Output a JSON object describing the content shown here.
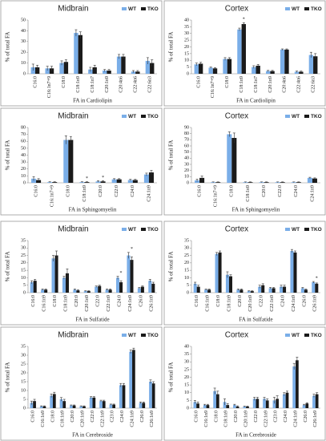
{
  "chart_data": [
    {
      "type": "bar",
      "title": "Midbrain",
      "xlabel": "FA in Cardiolipin",
      "ylabel": "% of total FA",
      "categories": [
        "C16:0",
        "C16:1n7+9",
        "C18:0",
        "C18:1n9",
        "C18:1n7",
        "C20:1n9",
        "C20:4n6",
        "C22:4n6",
        "C22:6n3"
      ],
      "series": [
        {
          "name": "WT",
          "color": "#7aaee8",
          "values": [
            6,
            5,
            10,
            38,
            4,
            3,
            16,
            2,
            12
          ],
          "errors": [
            3,
            2,
            2,
            3,
            2,
            1,
            2,
            1,
            3
          ]
        },
        {
          "name": "TKO",
          "color": "#1a1a1a",
          "values": [
            6,
            5,
            11,
            36,
            6,
            3,
            16,
            2,
            10
          ],
          "errors": [
            2,
            2,
            2,
            3,
            2,
            1,
            2,
            1,
            3
          ]
        }
      ],
      "ylim": [
        0,
        50
      ],
      "yticks": [
        0,
        10,
        20,
        30,
        40,
        50
      ],
      "annotations": []
    },
    {
      "type": "bar",
      "title": "Cortex",
      "xlabel": "FA in Cardiolipin",
      "ylabel": "% of total FA",
      "categories": [
        "C16:0",
        "C16:1n7+9",
        "C18:0",
        "C18:1n9",
        "C18:1n7",
        "C20:1n9",
        "C20:4n6",
        "C22:4n6",
        "C22:6n3"
      ],
      "series": [
        {
          "name": "WT",
          "color": "#7aaee8",
          "values": [
            7,
            4.5,
            11,
            33,
            5,
            2,
            18,
            1.5,
            14
          ],
          "errors": [
            1,
            0.5,
            1,
            1,
            1,
            0.5,
            0.5,
            0.5,
            2
          ]
        },
        {
          "name": "TKO",
          "color": "#1a1a1a",
          "values": [
            7.5,
            4,
            11,
            37,
            6,
            2,
            18,
            1.5,
            13
          ],
          "errors": [
            1,
            0.5,
            1,
            1,
            1,
            0.5,
            0.5,
            0.5,
            2
          ]
        }
      ],
      "ylim": [
        0,
        40
      ],
      "yticks": [
        0,
        5,
        10,
        15,
        20,
        25,
        30,
        35,
        40
      ],
      "annotations": [
        {
          "text": "*",
          "category": "C18:1n9"
        }
      ]
    },
    {
      "type": "bar",
      "title": "Midbrain",
      "xlabel": "FA in Sphingomyelin",
      "ylabel": "% of total FA",
      "categories": [
        "C16:0",
        "C16:1n7+9",
        "C18:0",
        "C18:1n9",
        "C20:0",
        "C22:0",
        "C24:0",
        "C24:1n9"
      ],
      "series": [
        {
          "name": "WT",
          "color": "#7aaee8",
          "values": [
            6,
            1,
            62,
            1,
            2,
            5,
            4,
            12
          ],
          "errors": [
            3,
            0.5,
            6,
            0.5,
            1,
            1,
            1,
            2
          ]
        },
        {
          "name": "TKO",
          "color": "#1a1a1a",
          "values": [
            4,
            1,
            62,
            1,
            2,
            5,
            4,
            15
          ],
          "errors": [
            2,
            0.5,
            5,
            0.5,
            1,
            1,
            1,
            3
          ]
        }
      ],
      "ylim": [
        0,
        80
      ],
      "yticks": [
        0,
        10,
        20,
        30,
        40,
        50,
        60,
        70,
        80
      ],
      "annotations": [
        {
          "text": "*",
          "category": "C18:1n9"
        },
        {
          "text": "*",
          "category": "C20:0"
        }
      ]
    },
    {
      "type": "bar",
      "title": "Cortex",
      "xlabel": "FA in Sphingomyelin",
      "ylabel": "% of total FA",
      "categories": [
        "C16:0",
        "C16:1n7+9",
        "C18:0",
        "C18:1n9",
        "C20:0",
        "C22:0",
        "C24:0",
        "C24:1n9"
      ],
      "series": [
        {
          "name": "WT",
          "color": "#7aaee8",
          "values": [
            4,
            1,
            79,
            1,
            1,
            1,
            1,
            8
          ],
          "errors": [
            2,
            0.5,
            4,
            0.5,
            0.5,
            0.5,
            0.5,
            1
          ]
        },
        {
          "name": "TKO",
          "color": "#1a1a1a",
          "values": [
            8,
            1,
            73,
            1,
            1,
            1,
            1,
            7
          ],
          "errors": [
            3,
            0.5,
            8,
            0.5,
            0.5,
            0.5,
            0.5,
            1
          ]
        }
      ],
      "ylim": [
        0,
        90
      ],
      "yticks": [
        0,
        10,
        20,
        30,
        40,
        50,
        60,
        70,
        80,
        90
      ],
      "annotations": []
    },
    {
      "type": "bar",
      "title": "Midbrain",
      "xlabel": "FA in Sulfatide",
      "ylabel": "% of total FA",
      "categories": [
        "C16:0",
        "C16:1n9",
        "C18:0",
        "C18:1n9",
        "C20:0",
        "C20:1n9",
        "C22:0",
        "C22:1n9",
        "C24:0",
        "C24:1n9",
        "C26:0",
        "C26:1n9"
      ],
      "series": [
        {
          "name": "WT",
          "color": "#7aaee8",
          "values": [
            7,
            2,
            23,
            10,
            2,
            1,
            4,
            2,
            10,
            25,
            3,
            8
          ],
          "errors": [
            1,
            0.5,
            2,
            1,
            0.5,
            0.3,
            0.5,
            0.5,
            1,
            2,
            0.5,
            1
          ]
        },
        {
          "name": "TKO",
          "color": "#1a1a1a",
          "values": [
            8,
            2,
            25,
            13,
            1.5,
            1,
            4.5,
            2,
            7,
            22,
            4,
            6
          ],
          "errors": [
            1,
            0.5,
            3,
            3,
            0.5,
            0.3,
            0.5,
            0.5,
            1,
            2,
            0.5,
            1
          ]
        }
      ],
      "ylim": [
        0,
        35
      ],
      "yticks": [
        0,
        5,
        10,
        15,
        20,
        25,
        30,
        35
      ],
      "annotations": [
        {
          "text": "*",
          "category": "C24:0"
        },
        {
          "text": "*",
          "category": "C24:1n9"
        }
      ]
    },
    {
      "type": "bar",
      "title": "Cortex",
      "xlabel": "FA in Sulfatide",
      "ylabel": "% of total FA",
      "categories": [
        "C16:0",
        "C16:1n9",
        "C18:0",
        "C18:1n9",
        "C20:0",
        "C20:1n9",
        "C22:0",
        "C22:1n9",
        "C24:0",
        "C24:1n9",
        "C26:0",
        "C26:1n9"
      ],
      "series": [
        {
          "name": "WT",
          "color": "#7aaee8",
          "values": [
            6,
            2,
            26,
            12,
            2,
            1,
            4,
            3,
            4,
            28,
            3,
            7
          ],
          "errors": [
            1,
            0.5,
            1,
            2,
            0.5,
            0.3,
            1,
            0.5,
            1,
            1,
            0.5,
            0.5
          ]
        },
        {
          "name": "TKO",
          "color": "#1a1a1a",
          "values": [
            4,
            2,
            27,
            11,
            2,
            1,
            5,
            3,
            4,
            27,
            2,
            6
          ],
          "errors": [
            1,
            0.5,
            1,
            1,
            0.5,
            0.3,
            1,
            0.5,
            1,
            1,
            0.5,
            0.5
          ]
        }
      ],
      "ylim": [
        0,
        35
      ],
      "yticks": [
        0,
        5,
        10,
        15,
        20,
        25,
        30,
        35
      ],
      "annotations": [
        {
          "text": "*",
          "category": "C26:1n9"
        }
      ]
    },
    {
      "type": "bar",
      "title": "Midbrain",
      "xlabel": "FA in Cerebroside",
      "ylabel": "% of total FA",
      "categories": [
        "C16:0",
        "C16:1n9",
        "C18:0",
        "C18:1n9",
        "C20:0",
        "C20:1n9",
        "C22:0",
        "C22:1n9",
        "C23:0",
        "C24:0",
        "C24:1n9",
        "C26:0",
        "C26:1n9"
      ],
      "series": [
        {
          "name": "WT",
          "color": "#7aaee8",
          "values": [
            3,
            1,
            7,
            5,
            1.5,
            1,
            6,
            4,
            2,
            13,
            32,
            3,
            15
          ],
          "errors": [
            1,
            0.3,
            1,
            1,
            0.3,
            0.3,
            0.5,
            0.5,
            0.3,
            1,
            1,
            0.5,
            1
          ]
        },
        {
          "name": "TKO",
          "color": "#1a1a1a",
          "values": [
            4,
            1,
            8,
            4,
            1.5,
            1,
            6,
            4,
            2,
            13,
            33,
            3,
            14
          ],
          "errors": [
            1,
            0.3,
            1,
            1,
            0.3,
            0.3,
            0.5,
            0.5,
            0.3,
            1,
            1,
            0.5,
            1
          ]
        }
      ],
      "ylim": [
        0,
        35
      ],
      "yticks": [
        0,
        5,
        10,
        15,
        20,
        25,
        30,
        35
      ],
      "annotations": []
    },
    {
      "type": "bar",
      "title": "Cortex",
      "xlabel": "FA in Cerebroside",
      "ylabel": "% of total FA",
      "categories": [
        "C16:0",
        "C16:1n9",
        "C18:0",
        "C18:1n9",
        "C20:0",
        "C20:1n9",
        "C22:0",
        "C22:1n9",
        "C23:0",
        "C24:0",
        "C24:1n9",
        "C26:0",
        "C26:1n9"
      ],
      "series": [
        {
          "name": "WT",
          "color": "#7aaee8",
          "values": [
            4,
            2,
            11,
            4,
            2,
            1,
            6,
            6,
            5,
            9,
            27,
            2,
            8
          ],
          "errors": [
            1,
            0.5,
            2,
            2,
            0.5,
            0.3,
            1,
            1,
            2,
            1,
            2,
            0.5,
            1
          ]
        },
        {
          "name": "TKO",
          "color": "#1a1a1a",
          "values": [
            3,
            2,
            9,
            2,
            1,
            1,
            6,
            5,
            6,
            10,
            31,
            3,
            9
          ],
          "errors": [
            1,
            0.5,
            2,
            1,
            0.5,
            0.3,
            1,
            1,
            2,
            1,
            2,
            0.5,
            1
          ]
        }
      ],
      "ylim": [
        0,
        40
      ],
      "yticks": [
        0,
        5,
        10,
        15,
        20,
        25,
        30,
        35,
        40
      ],
      "annotations": []
    }
  ]
}
